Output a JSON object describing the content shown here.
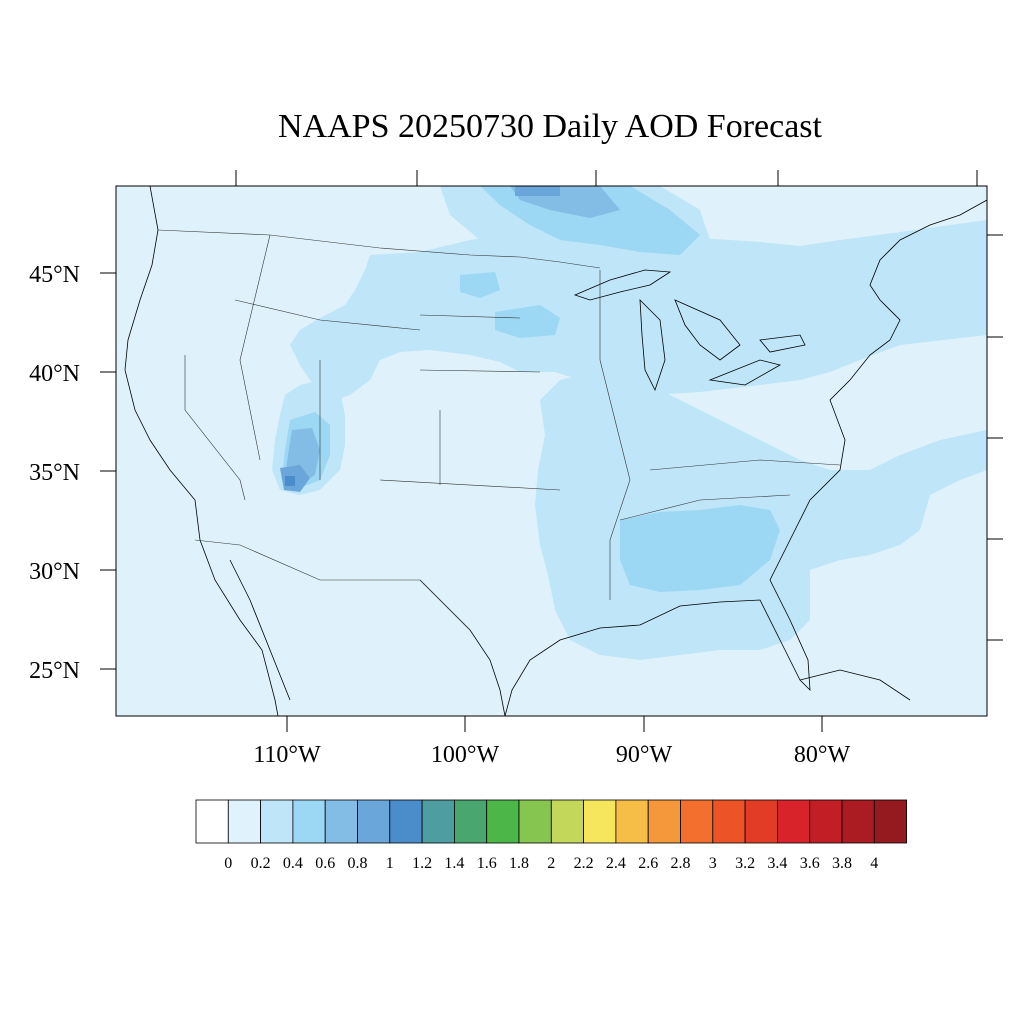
{
  "title": "NAAPS 20250730 Daily AOD Forecast",
  "map": {
    "lat_labels": [
      {
        "text": "45°N",
        "lat": 45
      },
      {
        "text": "40°N",
        "lat": 40
      },
      {
        "text": "35°N",
        "lat": 35
      },
      {
        "text": "30°N",
        "lat": 30
      },
      {
        "text": "25°N",
        "lat": 25
      }
    ],
    "lon_labels": [
      {
        "text": "110°W",
        "lon": -110
      },
      {
        "text": "100°W",
        "lon": -100
      },
      {
        "text": "90°W",
        "lon": -90
      },
      {
        "text": "80°W",
        "lon": -80
      }
    ],
    "background_color": "#dff2fb"
  },
  "colorbar": {
    "labels": [
      "0",
      "0.2",
      "0.4",
      "0.6",
      "0.8",
      "1",
      "1.2",
      "1.4",
      "1.6",
      "1.8",
      "2",
      "2.2",
      "2.4",
      "2.6",
      "2.8",
      "3",
      "3.2",
      "3.4",
      "3.6",
      "3.8",
      "4"
    ],
    "colors": [
      "#ffffff",
      "#e0f3fc",
      "#bee5f8",
      "#9cd7f4",
      "#83bde6",
      "#6aa6da",
      "#4b8dcb",
      "#4e9da0",
      "#4aa66f",
      "#4cb648",
      "#86c550",
      "#c3d85a",
      "#f5e65e",
      "#f6bd47",
      "#f5983c",
      "#f26f2d",
      "#ec5428",
      "#e23b26",
      "#d8232a",
      "#c11e26",
      "#aa1b22",
      "#951a1f"
    ]
  }
}
